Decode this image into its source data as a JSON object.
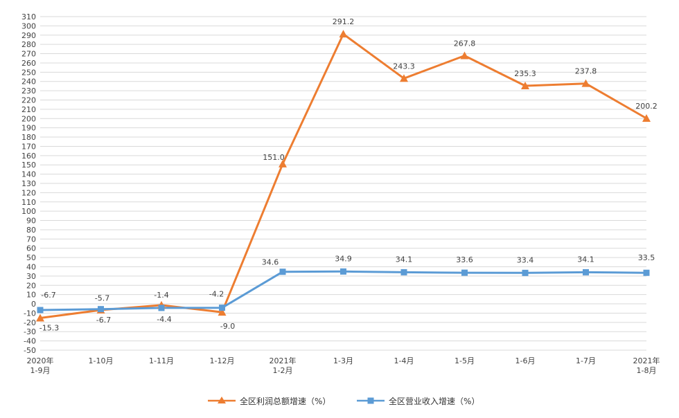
{
  "chart_data": {
    "type": "line",
    "categories": [
      [
        "2020年",
        "1-9月"
      ],
      [
        "1-10月"
      ],
      [
        "1-11月"
      ],
      [
        "1-12月"
      ],
      [
        "2021年",
        "1-2月"
      ],
      [
        "1-3月"
      ],
      [
        "1-4月"
      ],
      [
        "1-5月"
      ],
      [
        "1-6月"
      ],
      [
        "1-7月"
      ],
      [
        "2021年",
        "1-8月"
      ]
    ],
    "ylim": [
      -50,
      310
    ],
    "ytick_step": 10,
    "grid": true,
    "legend_position": "bottom",
    "series": [
      {
        "name": "全区利润总额增速（%）",
        "color": "#ED7D31",
        "marker": "triangle",
        "values": [
          -15.3,
          -6.7,
          -1.4,
          -9.0,
          151.0,
          291.2,
          243.3,
          267.8,
          235.3,
          237.8,
          200.2
        ],
        "labels": [
          "-15.3",
          "-6.7",
          "-1.4",
          "-9.0",
          "151.0",
          "291.2",
          "243.3",
          "267.8",
          "235.3",
          "237.8",
          "200.2"
        ]
      },
      {
        "name": "全区营业收入增速（%）",
        "color": "#5B9BD5",
        "marker": "square",
        "values": [
          -6.7,
          -5.7,
          -4.4,
          -4.2,
          34.6,
          34.9,
          34.1,
          33.6,
          33.4,
          34.1,
          33.5
        ],
        "labels": [
          "-6.7",
          "-5.7",
          "-4.4",
          "-4.2",
          "34.6",
          "34.9",
          "34.1",
          "33.6",
          "33.4",
          "34.1",
          "33.5"
        ]
      }
    ]
  }
}
